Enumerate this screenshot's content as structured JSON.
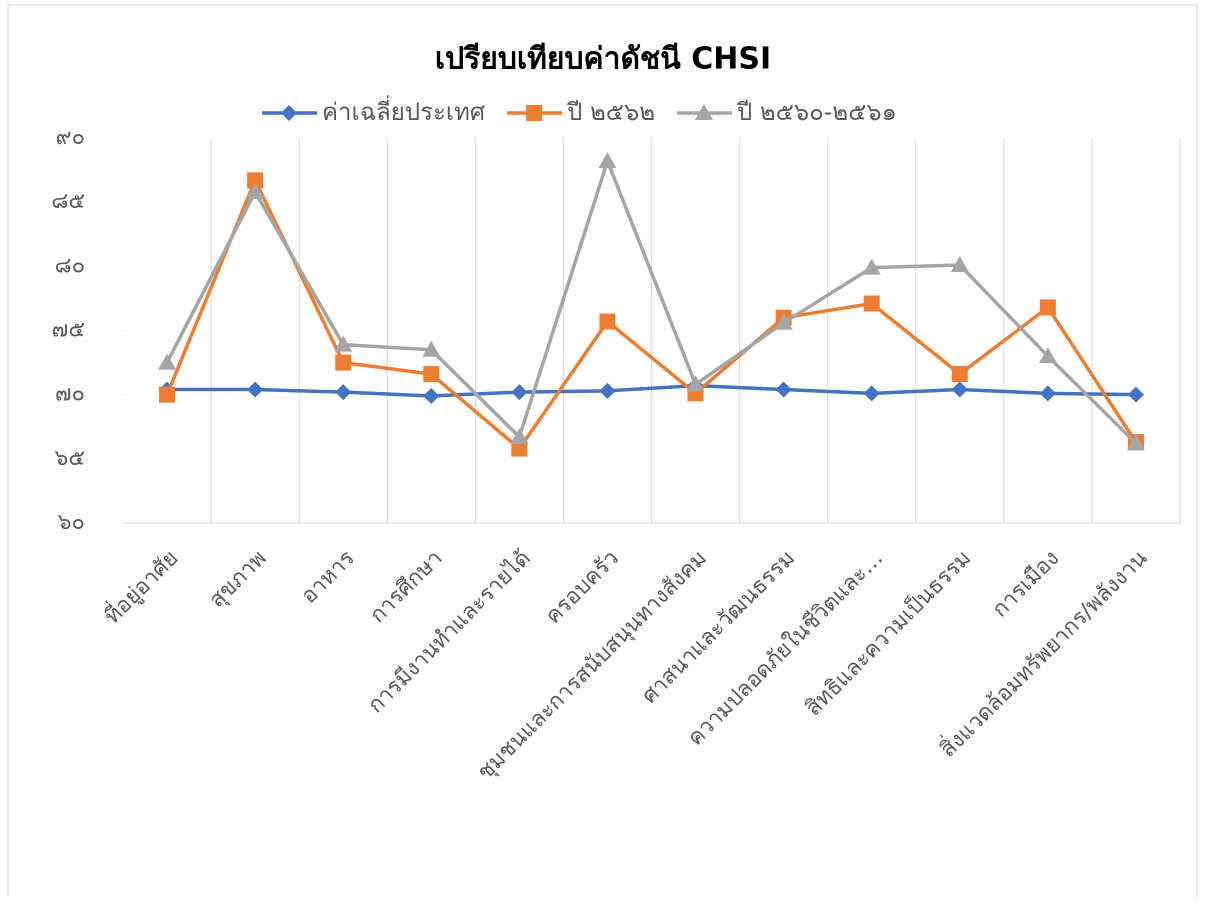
{
  "chart_data": {
    "type": "line",
    "title": "เปรียบเทียบค่าดัชนี CHSI",
    "categories": [
      "ที่อยู่อาศัย",
      "สุขภาพ",
      "อาหาร",
      "การศึกษา",
      "การมีงานทำและรายได้",
      "ครอบครัว",
      "ชุมชนและการสนับสนุนทางสังคม",
      "ศาสนาและวัฒนธรรม",
      "ความปลอดภัยในชีวิตและ…",
      "สิทธิและความเป็นธรรม",
      "การเมือง",
      "สิ่งแวดล้อมทรัพยากร/พลังงาน"
    ],
    "series": [
      {
        "name": "ค่าเฉลี่ยประเทศ",
        "color": "#4472c4",
        "marker": "diamond",
        "values": [
          70.4,
          70.4,
          70.2,
          69.9,
          70.2,
          70.3,
          70.7,
          70.4,
          70.1,
          70.4,
          70.1,
          70.0
        ]
      },
      {
        "name": "ปี ๒๕๖๒",
        "color": "#ed7d31",
        "marker": "square",
        "values": [
          70.0,
          86.7,
          72.5,
          71.6,
          65.8,
          75.7,
          70.1,
          76.0,
          77.1,
          71.6,
          76.8,
          66.3
        ]
      },
      {
        "name": "ปี ๒๕๖๐-๒๕๖๑",
        "color": "#a5a5a5",
        "marker": "triangle",
        "values": [
          72.5,
          85.8,
          73.9,
          73.5,
          66.7,
          88.2,
          70.8,
          75.6,
          79.9,
          80.1,
          73.0,
          66.2
        ]
      }
    ],
    "ylim": [
      60,
      90
    ],
    "yticks": [
      {
        "value": 60,
        "label": "๖๐"
      },
      {
        "value": 65,
        "label": "๖๕"
      },
      {
        "value": 70,
        "label": "๗๐"
      },
      {
        "value": 75,
        "label": "๗๕"
      },
      {
        "value": 80,
        "label": "๘๐"
      },
      {
        "value": 85,
        "label": "๘๕"
      },
      {
        "value": 90,
        "label": "๙๐"
      }
    ],
    "legend": "top"
  }
}
